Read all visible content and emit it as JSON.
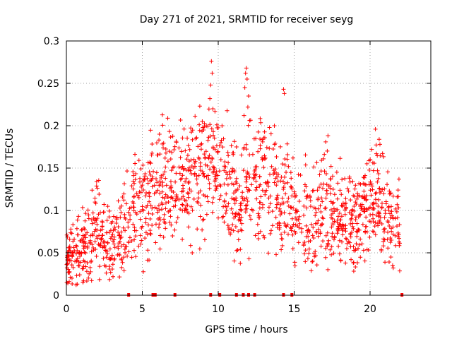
{
  "chart_data": {
    "type": "scatter",
    "title": "Day 271 of 2021, SRMTID for receiver seyg",
    "xlabel": "GPS time / hours",
    "ylabel": "SRMTID / TECUs",
    "xlim": [
      0,
      24
    ],
    "ylim": [
      0,
      0.3
    ],
    "xticks": [
      0,
      5,
      10,
      15,
      20
    ],
    "xtick_labels": [
      "0",
      "5",
      "10",
      "15",
      "20"
    ],
    "yticks": [
      0,
      0.05,
      0.1,
      0.15,
      0.2,
      0.25,
      0.3
    ],
    "ytick_labels": [
      "0",
      "0.05",
      "0.1",
      "0.15",
      "0.2",
      "0.25",
      "0.3"
    ],
    "grid": true,
    "marker": "+",
    "color": "#ff0000",
    "trend": [
      [
        0.0,
        0.04
      ],
      [
        0.5,
        0.045
      ],
      [
        1.0,
        0.052
      ],
      [
        1.5,
        0.062
      ],
      [
        2.0,
        0.085
      ],
      [
        2.5,
        0.06
      ],
      [
        3.0,
        0.055
      ],
      [
        3.5,
        0.065
      ],
      [
        4.0,
        0.085
      ],
      [
        4.5,
        0.105
      ],
      [
        5.0,
        0.095
      ],
      [
        5.5,
        0.11
      ],
      [
        6.0,
        0.12
      ],
      [
        6.5,
        0.125
      ],
      [
        7.0,
        0.135
      ],
      [
        7.5,
        0.13
      ],
      [
        8.0,
        0.135
      ],
      [
        8.5,
        0.15
      ],
      [
        9.0,
        0.14
      ],
      [
        9.5,
        0.16
      ],
      [
        10.0,
        0.14
      ],
      [
        10.5,
        0.125
      ],
      [
        11.0,
        0.115
      ],
      [
        11.5,
        0.12
      ],
      [
        12.0,
        0.135
      ],
      [
        12.5,
        0.13
      ],
      [
        13.0,
        0.14
      ],
      [
        13.5,
        0.13
      ],
      [
        14.0,
        0.11
      ],
      [
        14.5,
        0.12
      ],
      [
        15.0,
        0.1
      ],
      [
        15.5,
        0.095
      ],
      [
        16.0,
        0.09
      ],
      [
        16.5,
        0.095
      ],
      [
        17.0,
        0.11
      ],
      [
        17.5,
        0.1
      ],
      [
        18.0,
        0.095
      ],
      [
        18.5,
        0.09
      ],
      [
        19.0,
        0.085
      ],
      [
        19.5,
        0.09
      ],
      [
        20.0,
        0.1
      ],
      [
        20.5,
        0.12
      ],
      [
        21.0,
        0.1
      ],
      [
        21.5,
        0.08
      ],
      [
        22.0,
        0.075
      ]
    ],
    "spikes": [
      {
        "x": 9.55,
        "y": 0.276
      },
      {
        "x": 9.6,
        "y": 0.262
      },
      {
        "x": 9.5,
        "y": 0.248
      },
      {
        "x": 9.45,
        "y": 0.232
      },
      {
        "x": 9.65,
        "y": 0.22
      },
      {
        "x": 11.85,
        "y": 0.268
      },
      {
        "x": 11.8,
        "y": 0.262
      },
      {
        "x": 11.9,
        "y": 0.255
      },
      {
        "x": 11.75,
        "y": 0.245
      },
      {
        "x": 12.0,
        "y": 0.235
      },
      {
        "x": 11.95,
        "y": 0.222
      },
      {
        "x": 11.7,
        "y": 0.212
      },
      {
        "x": 14.3,
        "y": 0.243
      },
      {
        "x": 14.35,
        "y": 0.238
      },
      {
        "x": 8.95,
        "y": 0.205
      },
      {
        "x": 9.0,
        "y": 0.198
      },
      {
        "x": 10.25,
        "y": 0.2
      },
      {
        "x": 20.6,
        "y": 0.184
      },
      {
        "x": 20.65,
        "y": 0.178
      },
      {
        "x": 13.7,
        "y": 0.2
      },
      {
        "x": 7.75,
        "y": 0.196
      }
    ],
    "baseline_markers_x": [
      4.1,
      5.7,
      5.85,
      7.15,
      9.5,
      10.1,
      11.2,
      11.65,
      12.0,
      12.4,
      14.3,
      14.85,
      22.1
    ]
  }
}
